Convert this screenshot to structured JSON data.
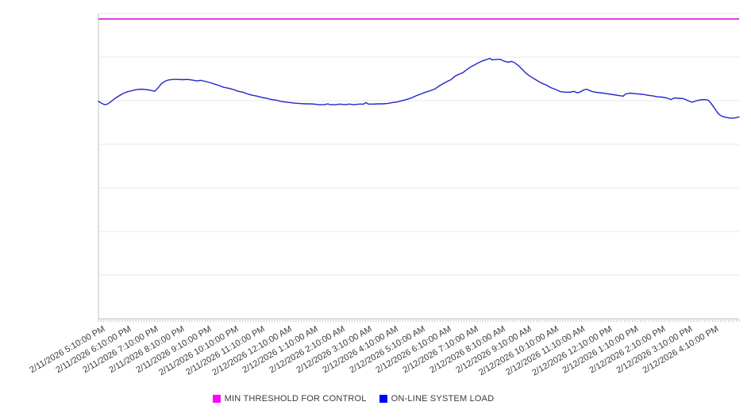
{
  "chart_data": {
    "type": "line",
    "title": "",
    "xlabel": "",
    "ylabel": "",
    "grid": "horizontal",
    "x_tick_rotation": -30,
    "x_minor_tick_count": 240,
    "y_axis": {
      "labels_visible": false,
      "normalized_range": [
        0,
        100
      ],
      "gridline_divisions": 7
    },
    "legend": {
      "position": "bottom-center"
    },
    "colors": {
      "grid": "#e9e9e9",
      "axis": "#c0c0c0",
      "tick": "#c9c9c9",
      "label_text": "#3b3b3b"
    },
    "x_labels": [
      "2/11/2026 5:10:00 PM",
      "2/11/2026 6:10:00 PM",
      "2/11/2026 7:10:00 PM",
      "2/11/2026 8:10:00 PM",
      "2/11/2026 9:10:00 PM",
      "2/11/2026 10:10:00 PM",
      "2/11/2026 11:10:00 PM",
      "2/12/2026 12:10:00 AM",
      "2/12/2026 1:10:00 AM",
      "2/12/2026 2:10:00 AM",
      "2/12/2026 3:10:00 AM",
      "2/12/2026 4:10:00 AM",
      "2/12/2026 5:10:00 AM",
      "2/12/2026 6:10:00 AM",
      "2/12/2026 7:10:00 AM",
      "2/12/2026 8:10:00 AM",
      "2/12/2026 9:10:00 AM",
      "2/12/2026 10:10:00 AM",
      "2/12/2026 11:10:00 AM",
      "2/12/2026 12:10:00 PM",
      "2/12/2026 1:10:00 PM",
      "2/12/2026 2:10:00 PM",
      "2/12/2026 3:10:00 PM",
      "2/12/2026 4:10:00 PM"
    ],
    "series": [
      {
        "name": "MIN THRESHOLD FOR CONTROL",
        "type": "threshold",
        "color": "#ff00ff",
        "line_color": "#d214d2",
        "value": 98.2
      },
      {
        "name": "ON-LINE SYSTEM LOAD",
        "type": "line",
        "color": "#0000ff",
        "line_color": "#2323cd",
        "points": [
          [
            0.0,
            71.2
          ],
          [
            0.005,
            70.6
          ],
          [
            0.0099,
            70.1
          ],
          [
            0.0149,
            70.4
          ],
          [
            0.0198,
            71.2
          ],
          [
            0.026,
            72.2
          ],
          [
            0.0322,
            73.0
          ],
          [
            0.0384,
            73.8
          ],
          [
            0.0446,
            74.3
          ],
          [
            0.052,
            74.7
          ],
          [
            0.0595,
            75.1
          ],
          [
            0.0669,
            75.2
          ],
          [
            0.0743,
            75.1
          ],
          [
            0.0818,
            74.8
          ],
          [
            0.088,
            74.5
          ],
          [
            0.0929,
            75.6
          ],
          [
            0.0979,
            76.9
          ],
          [
            0.1029,
            77.7
          ],
          [
            0.109,
            78.2
          ],
          [
            0.1165,
            78.4
          ],
          [
            0.1239,
            78.4
          ],
          [
            0.1313,
            78.3
          ],
          [
            0.1388,
            78.4
          ],
          [
            0.1462,
            78.2
          ],
          [
            0.1537,
            77.9
          ],
          [
            0.1599,
            78.1
          ],
          [
            0.1661,
            77.8
          ],
          [
            0.1735,
            77.4
          ],
          [
            0.1809,
            76.9
          ],
          [
            0.1884,
            76.4
          ],
          [
            0.1958,
            75.8
          ],
          [
            0.2032,
            75.5
          ],
          [
            0.2107,
            75.1
          ],
          [
            0.2181,
            74.5
          ],
          [
            0.2255,
            74.2
          ],
          [
            0.233,
            73.6
          ],
          [
            0.2404,
            73.2
          ],
          [
            0.2478,
            72.9
          ],
          [
            0.2553,
            72.5
          ],
          [
            0.2627,
            72.2
          ],
          [
            0.2701,
            71.8
          ],
          [
            0.2776,
            71.6
          ],
          [
            0.285,
            71.2
          ],
          [
            0.2925,
            71.0
          ],
          [
            0.2999,
            70.8
          ],
          [
            0.3073,
            70.6
          ],
          [
            0.3148,
            70.5
          ],
          [
            0.3222,
            70.4
          ],
          [
            0.3296,
            70.4
          ],
          [
            0.3371,
            70.3
          ],
          [
            0.3445,
            70.1
          ],
          [
            0.3519,
            70.1
          ],
          [
            0.3581,
            70.4
          ],
          [
            0.3618,
            70.1
          ],
          [
            0.3693,
            70.1
          ],
          [
            0.3767,
            70.3
          ],
          [
            0.3841,
            70.1
          ],
          [
            0.3916,
            70.3
          ],
          [
            0.399,
            70.1
          ],
          [
            0.4065,
            70.3
          ],
          [
            0.4139,
            70.3
          ],
          [
            0.4176,
            70.8
          ],
          [
            0.4213,
            70.3
          ],
          [
            0.4287,
            70.3
          ],
          [
            0.4362,
            70.4
          ],
          [
            0.4436,
            70.4
          ],
          [
            0.451,
            70.5
          ],
          [
            0.4585,
            70.8
          ],
          [
            0.4659,
            71.0
          ],
          [
            0.4733,
            71.4
          ],
          [
            0.4808,
            71.8
          ],
          [
            0.4882,
            72.3
          ],
          [
            0.4957,
            73.0
          ],
          [
            0.5031,
            73.6
          ],
          [
            0.5105,
            74.2
          ],
          [
            0.518,
            74.7
          ],
          [
            0.5254,
            75.3
          ],
          [
            0.5316,
            76.2
          ],
          [
            0.5378,
            77.0
          ],
          [
            0.544,
            77.7
          ],
          [
            0.5502,
            78.3
          ],
          [
            0.5564,
            79.4
          ],
          [
            0.5626,
            80.1
          ],
          [
            0.5688,
            80.6
          ],
          [
            0.575,
            81.6
          ],
          [
            0.5812,
            82.5
          ],
          [
            0.5873,
            83.2
          ],
          [
            0.5935,
            83.9
          ],
          [
            0.5997,
            84.5
          ],
          [
            0.6059,
            84.9
          ],
          [
            0.6109,
            85.3
          ],
          [
            0.6146,
            84.8
          ],
          [
            0.6196,
            84.9
          ],
          [
            0.627,
            85.0
          ],
          [
            0.6332,
            84.4
          ],
          [
            0.6394,
            84.0
          ],
          [
            0.6444,
            84.3
          ],
          [
            0.6494,
            83.9
          ],
          [
            0.6556,
            82.9
          ],
          [
            0.6617,
            81.6
          ],
          [
            0.6679,
            80.3
          ],
          [
            0.6741,
            79.4
          ],
          [
            0.6803,
            78.6
          ],
          [
            0.6865,
            77.8
          ],
          [
            0.6927,
            77.1
          ],
          [
            0.6989,
            76.6
          ],
          [
            0.7063,
            75.7
          ],
          [
            0.7138,
            75.1
          ],
          [
            0.7212,
            74.4
          ],
          [
            0.7286,
            74.2
          ],
          [
            0.7361,
            74.2
          ],
          [
            0.7423,
            74.5
          ],
          [
            0.7472,
            74.0
          ],
          [
            0.7522,
            74.3
          ],
          [
            0.7571,
            74.9
          ],
          [
            0.7621,
            75.2
          ],
          [
            0.7695,
            74.5
          ],
          [
            0.7757,
            74.2
          ],
          [
            0.7881,
            73.9
          ],
          [
            0.8004,
            73.5
          ],
          [
            0.8128,
            73.1
          ],
          [
            0.819,
            72.9
          ],
          [
            0.8228,
            73.6
          ],
          [
            0.829,
            73.9
          ],
          [
            0.8352,
            73.8
          ],
          [
            0.8427,
            73.6
          ],
          [
            0.8501,
            73.5
          ],
          [
            0.8575,
            73.2
          ],
          [
            0.865,
            73.0
          ],
          [
            0.8724,
            72.7
          ],
          [
            0.8798,
            72.6
          ],
          [
            0.8873,
            72.3
          ],
          [
            0.8935,
            71.8
          ],
          [
            0.8984,
            72.3
          ],
          [
            0.9059,
            72.2
          ],
          [
            0.9133,
            72.1
          ],
          [
            0.9207,
            71.4
          ],
          [
            0.9269,
            70.9
          ],
          [
            0.9331,
            71.4
          ],
          [
            0.9393,
            71.7
          ],
          [
            0.9467,
            71.8
          ],
          [
            0.9517,
            71.6
          ],
          [
            0.9554,
            70.8
          ],
          [
            0.9591,
            69.7
          ],
          [
            0.9628,
            68.6
          ],
          [
            0.9678,
            67.1
          ],
          [
            0.9727,
            66.4
          ],
          [
            0.9789,
            66.0
          ],
          [
            0.9864,
            65.7
          ],
          [
            0.9938,
            65.8
          ],
          [
            1.0,
            66.1
          ]
        ]
      }
    ]
  }
}
